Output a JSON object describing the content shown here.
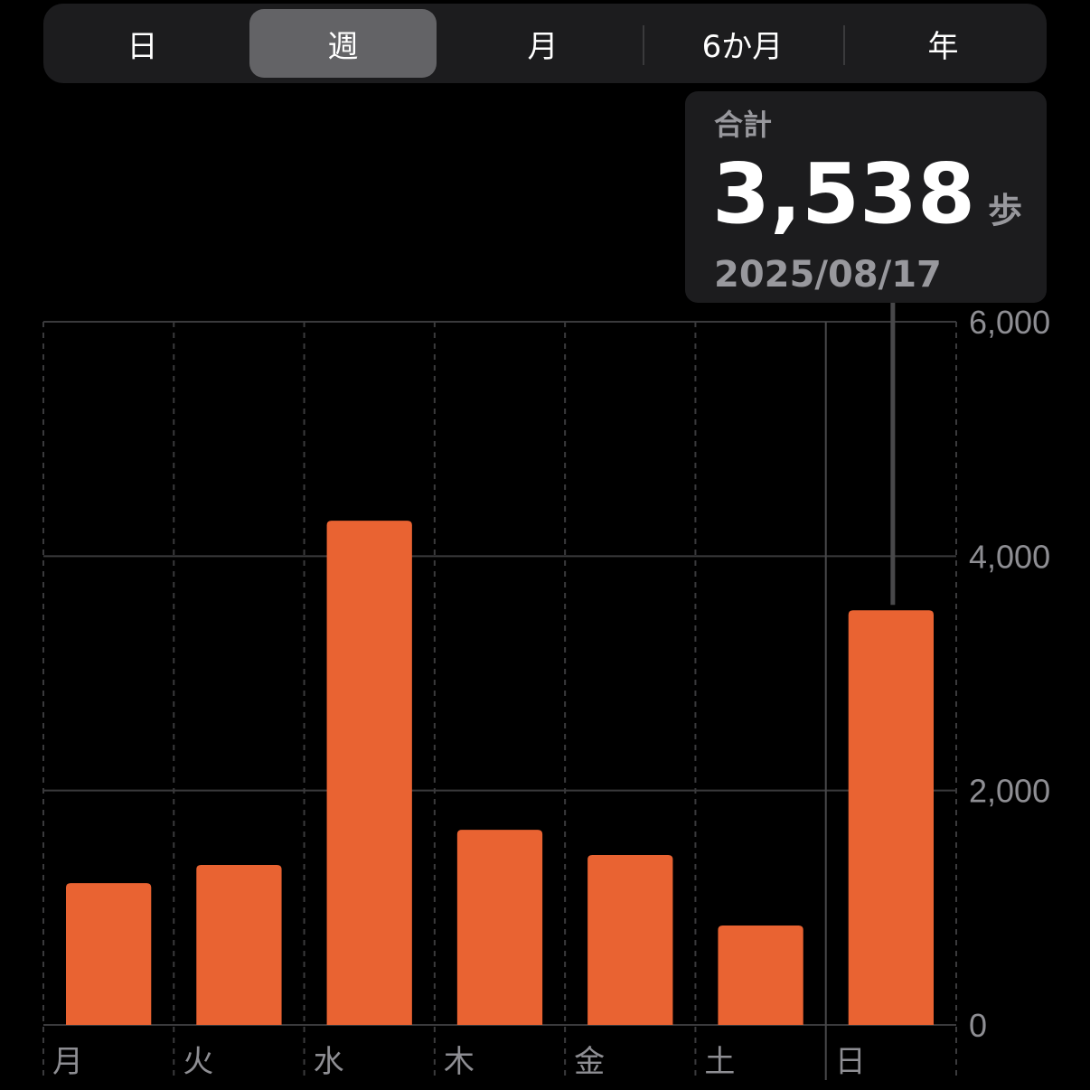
{
  "segments": [
    {
      "label": "日",
      "selected": false
    },
    {
      "label": "週",
      "selected": true
    },
    {
      "label": "月",
      "selected": false
    },
    {
      "label": "6か月",
      "selected": false
    },
    {
      "label": "年",
      "selected": false
    }
  ],
  "tooltip": {
    "label": "合計",
    "value": "3,538",
    "unit": "歩",
    "date": "2025/08/17"
  },
  "chart_data": {
    "type": "bar",
    "categories": [
      "月",
      "火",
      "水",
      "木",
      "金",
      "土",
      "日"
    ],
    "values": [
      1210,
      1365,
      4302,
      1665,
      1450,
      848,
      3538
    ],
    "ylim": [
      0,
      6000
    ],
    "yticks": [
      "0",
      "2,000",
      "4,000",
      "6,000"
    ],
    "ytick_values": [
      0,
      2000,
      4000,
      6000
    ],
    "grid": true,
    "selected_index": 6,
    "bar_color": "#e96332"
  }
}
